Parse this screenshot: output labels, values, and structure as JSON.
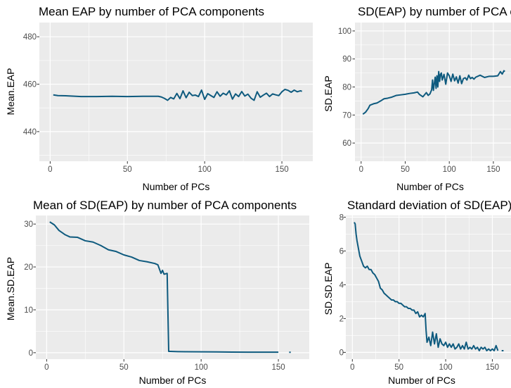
{
  "line_color": "#0e5a7e",
  "panel_background": "#ebebeb",
  "grid_color": "#ffffff",
  "chart_data": [
    {
      "type": "line",
      "title": "Mean EAP by number of PCA components",
      "xlabel": "Number of PCs",
      "ylabel": "Mean.EAP",
      "xlim": [
        -7,
        170
      ],
      "ylim": [
        427.5,
        486
      ],
      "xticks": [
        0,
        50,
        100,
        150
      ],
      "yticks": [
        440,
        460,
        480
      ],
      "grid": true,
      "series": [
        {
          "x": [
            2,
            5,
            10,
            20,
            30,
            40,
            50,
            60,
            70,
            72,
            74,
            76,
            78,
            80,
            82,
            84,
            86,
            88,
            90,
            92,
            94,
            96,
            98,
            100,
            102,
            104,
            106,
            108,
            110,
            112,
            114,
            116,
            118,
            120,
            122,
            124,
            126,
            128,
            130,
            132,
            134,
            136,
            138,
            140,
            142,
            144,
            146,
            148,
            150,
            152,
            154,
            156,
            158,
            160,
            162,
            163
          ],
          "y": [
            455.5,
            455.2,
            455.1,
            454.8,
            454.8,
            454.9,
            454.8,
            454.9,
            454.9,
            454.6,
            454.0,
            453.2,
            454.4,
            453.8,
            456.1,
            453.9,
            457.2,
            454.3,
            456.6,
            455.2,
            455.4,
            454.8,
            457.5,
            453.6,
            456.0,
            455.2,
            454.4,
            456.8,
            454.9,
            456.2,
            455.5,
            457.2,
            453.7,
            455.9,
            454.8,
            456.9,
            455.0,
            455.8,
            454.1,
            453.2,
            456.8,
            454.5,
            455.4,
            456.2,
            454.8,
            455.9,
            455.5,
            455.2,
            456.8,
            457.8,
            457.4,
            456.6,
            457.5,
            456.8,
            457.2,
            457.0
          ]
        }
      ]
    },
    {
      "type": "line",
      "title": "SD(EAP) by number of PCA components",
      "xlabel": "Number of PCs",
      "ylabel": "SD.EAP",
      "xlim": [
        -7,
        170
      ],
      "ylim": [
        53.5,
        103
      ],
      "xticks": [
        0,
        50,
        100,
        150
      ],
      "yticks": [
        60,
        70,
        80,
        90,
        100
      ],
      "grid": true,
      "series": [
        {
          "x": [
            2,
            5,
            8,
            10,
            14,
            18,
            22,
            26,
            30,
            35,
            40,
            45,
            50,
            55,
            60,
            64,
            66,
            70,
            74,
            76,
            78,
            80,
            81,
            82,
            84,
            85,
            86,
            87,
            88,
            89,
            90,
            91,
            92,
            94,
            96,
            98,
            100,
            102,
            104,
            106,
            108,
            110,
            112,
            114,
            116,
            118,
            120,
            122,
            124,
            126,
            128,
            130,
            135,
            140,
            145,
            150,
            155,
            158,
            160,
            162,
            163
          ],
          "y": [
            70.3,
            71.0,
            72.3,
            73.5,
            74.0,
            74.3,
            75.0,
            75.8,
            76.0,
            76.4,
            77.0,
            77.2,
            77.4,
            77.7,
            77.9,
            78.2,
            77.4,
            76.5,
            78.0,
            77.0,
            77.5,
            79.0,
            82.5,
            78.8,
            83.5,
            79.5,
            84.0,
            80.0,
            85.5,
            82.0,
            84.5,
            85.0,
            82.5,
            84.5,
            81.0,
            85.0,
            84.0,
            82.0,
            84.6,
            82.2,
            83.6,
            81.4,
            84.0,
            81.2,
            83.0,
            83.3,
            82.5,
            84.2,
            83.0,
            83.4,
            82.8,
            83.5,
            84.2,
            83.4,
            83.8,
            83.8,
            84.0,
            85.5,
            84.6,
            85.8,
            85.5
          ]
        }
      ]
    },
    {
      "type": "line",
      "title": "Mean of SD(EAP) by number of PCA components",
      "xlabel": "Number of PCs",
      "ylabel": "Mean.SD.EAP",
      "xlim": [
        -7,
        170
      ],
      "ylim": [
        -1.5,
        32
      ],
      "xticks": [
        0,
        50,
        100,
        150
      ],
      "yticks": [
        0,
        10,
        20,
        30
      ],
      "grid": true,
      "series": [
        {
          "x": [
            2,
            5,
            8,
            10,
            12,
            15,
            20,
            25,
            30,
            35,
            40,
            45,
            50,
            55,
            60,
            65,
            70,
            72,
            74,
            75,
            76,
            78,
            79,
            80,
            85,
            90,
            100,
            110,
            120,
            130,
            140,
            150,
            153,
            157,
            158,
            160,
            161
          ],
          "y": [
            30.5,
            29.8,
            28.5,
            28.0,
            27.5,
            27.0,
            26.9,
            26.1,
            25.8,
            25.0,
            24.0,
            23.6,
            22.8,
            22.3,
            21.5,
            21.2,
            20.8,
            20.5,
            18.5,
            19.2,
            18.3,
            18.5,
            0.3,
            0.3,
            0.25,
            0.22,
            0.2,
            0.18,
            0.15,
            0.13,
            0.12,
            0.12,
            null,
            0.1,
            0.1,
            null,
            0.1
          ]
        }
      ]
    },
    {
      "type": "line",
      "title": "Standard deviation of SD(EAP) by number of PCA components",
      "xlabel": "Number of PCs",
      "ylabel": "SD.SD.EAP",
      "xlim": [
        -7,
        170
      ],
      "ylim": [
        -0.4,
        8.1
      ],
      "xticks": [
        0,
        50,
        100,
        150
      ],
      "yticks": [
        0,
        2,
        4,
        6,
        8
      ],
      "grid": true,
      "series": [
        {
          "x": [
            2,
            3,
            4,
            5,
            6,
            7,
            8,
            10,
            12,
            14,
            16,
            18,
            20,
            22,
            24,
            26,
            28,
            30,
            32,
            34,
            36,
            38,
            40,
            42,
            44,
            46,
            48,
            50,
            52,
            54,
            56,
            58,
            60,
            62,
            64,
            66,
            68,
            70,
            72,
            74,
            76,
            78,
            79,
            80,
            82,
            84,
            86,
            88,
            90,
            92,
            94,
            96,
            98,
            100,
            102,
            104,
            106,
            108,
            110,
            112,
            114,
            116,
            118,
            120,
            122,
            124,
            126,
            128,
            130,
            132,
            134,
            136,
            138,
            140,
            142,
            144,
            146,
            148,
            150,
            152,
            154,
            156,
            158,
            160,
            161,
            162
          ],
          "y": [
            7.7,
            7.6,
            7.0,
            6.6,
            6.3,
            6.0,
            5.7,
            5.4,
            5.1,
            5.0,
            5.1,
            4.9,
            4.9,
            4.7,
            4.6,
            4.4,
            4.2,
            3.8,
            3.7,
            3.5,
            3.4,
            3.3,
            3.2,
            3.1,
            3.1,
            3.0,
            3.0,
            2.9,
            2.9,
            2.8,
            2.7,
            2.7,
            2.6,
            2.6,
            2.5,
            2.5,
            2.3,
            2.4,
            2.1,
            2.2,
            2.1,
            2.3,
            1.3,
            0.6,
            0.9,
            0.4,
            1.2,
            0.5,
            1.1,
            0.3,
            0.8,
            0.5,
            0.4,
            0.6,
            0.3,
            0.5,
            0.3,
            0.5,
            0.2,
            0.3,
            0.5,
            0.2,
            0.4,
            0.2,
            0.6,
            0.2,
            0.3,
            0.2,
            0.4,
            0.2,
            0.3,
            0.1,
            0.3,
            0.2,
            0.3,
            0.1,
            0.2,
            0.1,
            0.2,
            0.1,
            0.4,
            0.1,
            null,
            0.1,
            0.1,
            0.1
          ]
        }
      ]
    }
  ]
}
